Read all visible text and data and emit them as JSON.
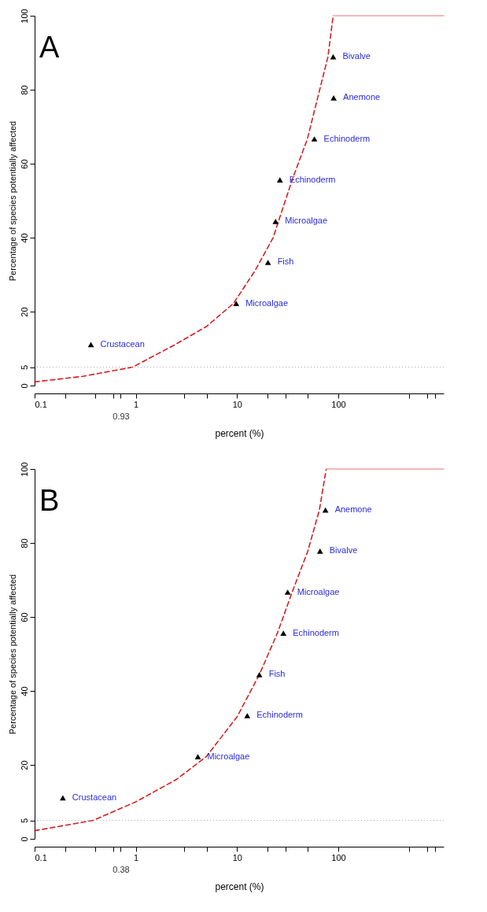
{
  "chart_data": [
    {
      "type": "scatter",
      "title": "A",
      "xlabel": "percent (%)",
      "ylabel": "Percentage of species potentially affected",
      "log": "x",
      "xlim": [
        0.1,
        1100
      ],
      "ylim": [
        0,
        100
      ],
      "xticks": [
        0.1,
        {
          "value": 0.2,
          "label": null
        },
        {
          "value": 0.4,
          "label": null
        },
        {
          "value": 0.6,
          "label": null
        },
        {
          "value": 0.7,
          "label": null
        },
        1,
        {
          "value": 3,
          "label": null
        },
        {
          "value": 5,
          "label": null
        },
        10,
        {
          "value": 20,
          "label": null
        },
        {
          "value": 30,
          "label": null
        },
        {
          "value": 50,
          "label": null
        },
        100,
        {
          "value": 500,
          "label": null
        },
        {
          "value": 750,
          "label": null
        },
        {
          "value": 900,
          "label": null
        }
      ],
      "yticks": [
        0,
        5,
        20,
        40,
        60,
        80,
        100
      ],
      "grid": false,
      "series": [
        {
          "type": "line",
          "color": "#d42020",
          "line_style": "dashed",
          "x": [
            0.1,
            0.3,
            0.93,
            2.45,
            5,
            9.2,
            15,
            22.7,
            35,
            49.5,
            79,
            89
          ],
          "values": [
            1,
            2.5,
            5,
            11.1,
            16,
            22.2,
            31,
            40,
            55.6,
            66.7,
            88.9,
            100
          ]
        },
        {
          "type": "line",
          "color": "#f2a0a0",
          "line_style": "solid",
          "x": [
            89,
            1100
          ],
          "values": [
            100,
            100
          ]
        },
        {
          "color": "#000000",
          "marker": "triangle",
          "x": [
            0.36,
            9.8,
            20.2,
            24,
            26.5,
            58,
            90,
            89
          ],
          "values": [
            11.1,
            22.2,
            33.3,
            44.4,
            55.6,
            66.7,
            77.8,
            88.9
          ]
        }
      ],
      "ref_lines": [
        {
          "axis": "y",
          "value": 5,
          "color": "#aaaaaa",
          "line_style": "dotted"
        }
      ],
      "annotations": [
        {
          "text": "Crustacean",
          "x": 0.36,
          "y": 11.1
        },
        {
          "text": "Microalgae",
          "x": 9.8,
          "y": 22.2
        },
        {
          "text": "Fish",
          "x": 20.2,
          "y": 33.3
        },
        {
          "text": "Microalgae",
          "x": 24,
          "y": 44.4
        },
        {
          "text": "Echinoderm",
          "x": 26.5,
          "y": 55.6
        },
        {
          "text": "Echinoderm",
          "x": 58,
          "y": 66.7
        },
        {
          "text": "Anemone",
          "x": 90,
          "y": 77.8
        },
        {
          "text": "Bivalve",
          "x": 89,
          "y": 88.9
        },
        "0.93"
      ]
    },
    {
      "type": "scatter",
      "title": "B",
      "xlabel": "percent (%)",
      "ylabel": "Percentage of species potentially affected",
      "log": "x",
      "xlim": [
        0.1,
        1100
      ],
      "ylim": [
        0,
        100
      ],
      "xticks": [
        0.1,
        {
          "value": 0.2,
          "label": null
        },
        {
          "value": 0.4,
          "label": null
        },
        {
          "value": 0.6,
          "label": null
        },
        {
          "value": 0.7,
          "label": null
        },
        1,
        {
          "value": 3,
          "label": null
        },
        {
          "value": 5,
          "label": null
        },
        10,
        {
          "value": 20,
          "label": null
        },
        {
          "value": 30,
          "label": null
        },
        {
          "value": 50,
          "label": null
        },
        100,
        {
          "value": 500,
          "label": null
        },
        {
          "value": 750,
          "label": null
        },
        {
          "value": 900,
          "label": null
        }
      ],
      "yticks": [
        0,
        5,
        20,
        40,
        60,
        80,
        100
      ],
      "grid": false,
      "series": [
        {
          "type": "line",
          "color": "#d42020",
          "line_style": "dashed",
          "x": [
            0.1,
            0.38,
            1,
            2.5,
            4.95,
            10,
            16.6,
            25,
            35,
            50,
            65,
            76
          ],
          "values": [
            2.2,
            5,
            10,
            16,
            22.2,
            33,
            44.4,
            55.6,
            66.7,
            77.8,
            88.9,
            100
          ]
        },
        {
          "type": "line",
          "color": "#f2a0a0",
          "line_style": "solid",
          "x": [
            76,
            1100
          ],
          "values": [
            100,
            100
          ]
        },
        {
          "color": "#000000",
          "marker": "triangle",
          "x": [
            0.19,
            4.1,
            12.6,
            16.6,
            28.7,
            31.6,
            66,
            74.6
          ],
          "values": [
            11.1,
            22.2,
            33.3,
            44.4,
            55.6,
            66.7,
            77.8,
            88.9
          ]
        }
      ],
      "ref_lines": [
        {
          "axis": "y",
          "value": 5,
          "color": "#aaaaaa",
          "line_style": "dotted"
        }
      ],
      "annotations": [
        {
          "text": "Crustacean",
          "x": 0.19,
          "y": 11.1
        },
        {
          "text": "Microalgae",
          "x": 4.1,
          "y": 22.2
        },
        {
          "text": "Echinoderm",
          "x": 12.6,
          "y": 33.3
        },
        {
          "text": "Fish",
          "x": 16.6,
          "y": 44.4
        },
        {
          "text": "Echinoderm",
          "x": 28.7,
          "y": 55.6
        },
        {
          "text": "Microalgae",
          "x": 31.6,
          "y": 66.7
        },
        {
          "text": "Bivalve",
          "x": 66,
          "y": 77.8
        },
        {
          "text": "Anemone",
          "x": 74.6,
          "y": 88.9
        },
        "0.38"
      ]
    }
  ]
}
